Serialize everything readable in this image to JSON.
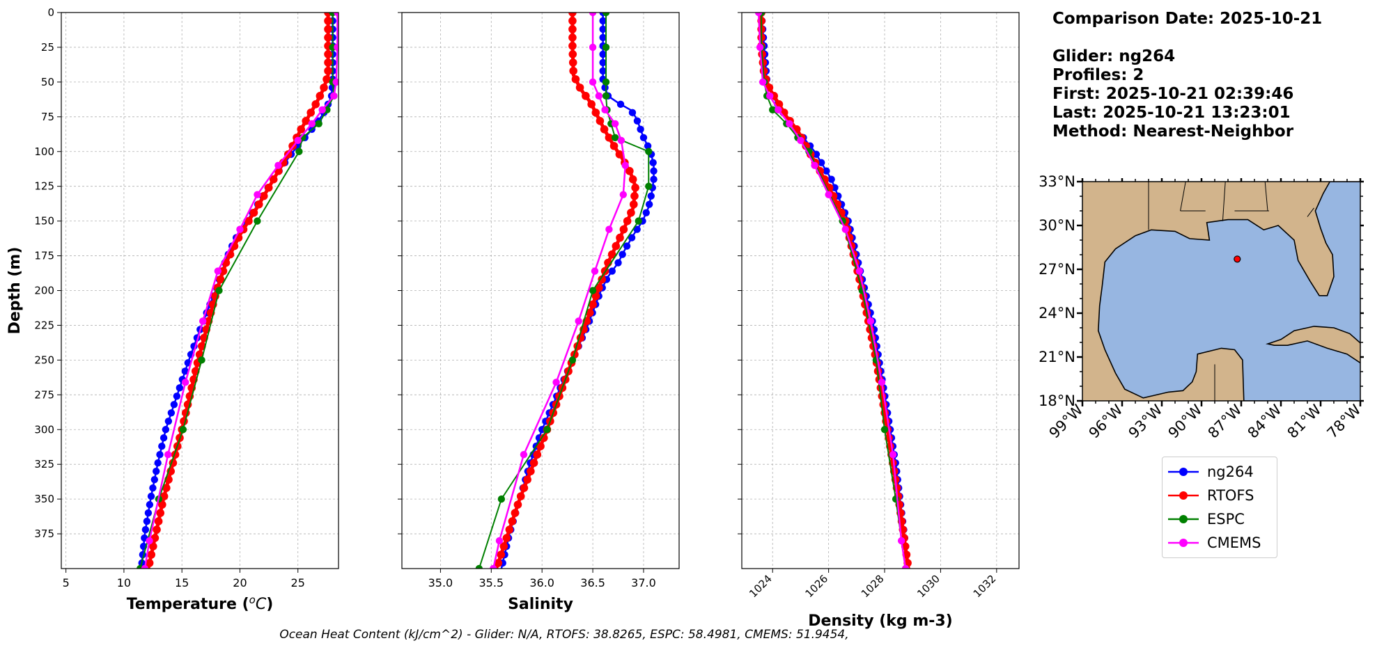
{
  "info": {
    "comparison_date": "Comparison Date: 2025-10-21",
    "glider": "Glider: ng264",
    "profiles": "Profiles: 2",
    "first": "First: 2025-10-21 02:39:46",
    "last": "Last: 2025-10-21 13:23:01",
    "method": "Method: Nearest-Neighbor"
  },
  "footer": "Ocean Heat Content (kJ/cm^2) - Glider: N/A,  RTOFS: 38.8265,  ESPC: 58.4981,  CMEMS: 51.9454,",
  "colors": {
    "ng264": "#0000ff",
    "RTOFS": "#ff0000",
    "ESPC": "#008000",
    "CMEMS": "#ff00ff",
    "land": "#d2b48c",
    "ocean": "#97b6e1"
  },
  "legend": [
    {
      "label": "ng264",
      "color": "#0000ff"
    },
    {
      "label": "RTOFS",
      "color": "#ff0000"
    },
    {
      "label": "ESPC",
      "color": "#008000"
    },
    {
      "label": "CMEMS",
      "color": "#ff00ff"
    }
  ],
  "chart_data": [
    {
      "type": "line",
      "xlabel": "Temperature (°C)",
      "ylabel": "Depth (m)",
      "xlim": [
        4.6,
        28.5
      ],
      "ylim": [
        400,
        0
      ],
      "xticks": [
        5,
        10,
        15,
        20,
        25
      ],
      "yticks": [
        0,
        25,
        50,
        75,
        100,
        125,
        150,
        175,
        200,
        225,
        250,
        275,
        300,
        325,
        350,
        375
      ],
      "grid": true,
      "series": [
        {
          "name": "ng264",
          "depth": [
            0,
            25,
            50,
            60,
            70,
            80,
            90,
            100,
            110,
            120,
            130,
            140,
            150,
            160,
            170,
            180,
            190,
            200,
            225,
            250,
            275,
            300,
            325,
            350,
            375,
            400
          ],
          "values": [
            28.0,
            28.0,
            28.0,
            27.9,
            27.4,
            26.6,
            25.6,
            24.6,
            23.7,
            22.9,
            22.1,
            21.4,
            20.6,
            19.8,
            19.2,
            18.7,
            18.3,
            17.9,
            16.7,
            15.6,
            14.6,
            13.6,
            12.9,
            12.3,
            11.8,
            11.5
          ]
        },
        {
          "name": "RTOFS",
          "depth": [
            0,
            25,
            45,
            55,
            65,
            75,
            85,
            100,
            120,
            140,
            160,
            180,
            200,
            250,
            300,
            350,
            400
          ],
          "values": [
            27.6,
            27.6,
            27.6,
            27.2,
            26.6,
            25.9,
            25.2,
            24.3,
            22.9,
            21.5,
            20.0,
            18.8,
            18.0,
            16.4,
            15.0,
            13.4,
            12.1
          ]
        },
        {
          "name": "ESPC",
          "depth": [
            0,
            25,
            50,
            60,
            70,
            80,
            90,
            100,
            150,
            200,
            250,
            300,
            350,
            400
          ],
          "values": [
            28.0,
            28.0,
            28.0,
            28.1,
            27.5,
            26.8,
            25.4,
            25.1,
            21.5,
            18.2,
            16.7,
            15.1,
            13.0,
            11.4
          ]
        },
        {
          "name": "CMEMS",
          "depth": [
            0,
            25,
            50,
            60,
            70,
            80,
            92,
            110,
            131,
            156,
            186,
            222,
            266,
            318,
            380,
            400
          ],
          "values": [
            28.4,
            28.4,
            28.3,
            28.1,
            27.1,
            26.2,
            25.0,
            23.3,
            21.5,
            20.0,
            18.1,
            16.8,
            15.3,
            13.8,
            12.2,
            11.8
          ]
        }
      ]
    },
    {
      "type": "line",
      "xlabel": "Salinity",
      "xlim": [
        34.62,
        37.35
      ],
      "ylim": [
        400,
        0
      ],
      "xticks": [
        35.0,
        35.5,
        36.0,
        36.5,
        37.0
      ],
      "grid": true,
      "series": [
        {
          "name": "ng264",
          "depth": [
            0,
            25,
            50,
            60,
            65,
            70,
            75,
            80,
            90,
            100,
            110,
            120,
            130,
            140,
            150,
            160,
            170,
            180,
            190,
            200,
            225,
            250,
            275,
            300,
            325,
            350,
            375,
            400
          ],
          "values": [
            36.6,
            36.6,
            36.6,
            36.65,
            36.75,
            36.87,
            36.92,
            36.95,
            37.0,
            37.07,
            37.1,
            37.1,
            37.08,
            37.05,
            36.99,
            36.9,
            36.82,
            36.75,
            36.65,
            36.58,
            36.45,
            36.3,
            36.15,
            36.0,
            35.88,
            35.78,
            35.68,
            35.6
          ]
        },
        {
          "name": "RTOFS",
          "depth": [
            0,
            25,
            45,
            55,
            65,
            75,
            85,
            95,
            105,
            115,
            125,
            140,
            160,
            180,
            200,
            250,
            300,
            350,
            400
          ],
          "values": [
            36.3,
            36.3,
            36.31,
            36.38,
            36.48,
            36.55,
            36.62,
            36.7,
            36.79,
            36.87,
            36.92,
            36.9,
            36.78,
            36.65,
            36.55,
            36.3,
            36.05,
            35.78,
            35.55
          ]
        },
        {
          "name": "ESPC",
          "depth": [
            0,
            25,
            50,
            60,
            70,
            80,
            90,
            100,
            125,
            150,
            200,
            250,
            300,
            350,
            400
          ],
          "values": [
            36.63,
            36.63,
            36.63,
            36.63,
            36.64,
            36.68,
            36.72,
            37.05,
            37.05,
            36.95,
            36.5,
            36.3,
            36.05,
            35.6,
            35.38
          ]
        },
        {
          "name": "CMEMS",
          "depth": [
            0,
            25,
            50,
            60,
            70,
            80,
            92,
            110,
            131,
            156,
            186,
            222,
            266,
            318,
            380,
            400
          ],
          "values": [
            36.5,
            36.5,
            36.5,
            36.56,
            36.62,
            36.72,
            36.78,
            36.82,
            36.8,
            36.66,
            36.52,
            36.36,
            36.14,
            35.82,
            35.58,
            35.52
          ]
        }
      ]
    },
    {
      "type": "line",
      "xlabel": "Density (kg m-3)",
      "xlim": [
        1022.9,
        1032.8
      ],
      "ylim": [
        400,
        0
      ],
      "xticks": [
        1024,
        1026,
        1028,
        1030,
        1032
      ],
      "grid": true,
      "series": [
        {
          "name": "ng264",
          "depth": [
            0,
            25,
            50,
            60,
            70,
            80,
            90,
            100,
            110,
            120,
            130,
            150,
            175,
            200,
            225,
            250,
            275,
            300,
            325,
            350,
            375,
            400
          ],
          "values": [
            1023.6,
            1023.7,
            1023.8,
            1024.0,
            1024.3,
            1024.7,
            1025.1,
            1025.5,
            1025.8,
            1026.1,
            1026.3,
            1026.7,
            1027.0,
            1027.3,
            1027.6,
            1027.8,
            1028.0,
            1028.2,
            1028.4,
            1028.55,
            1028.7,
            1028.85
          ]
        },
        {
          "name": "RTOFS",
          "depth": [
            0,
            25,
            45,
            55,
            65,
            75,
            85,
            100,
            125,
            150,
            175,
            200,
            250,
            300,
            350,
            400
          ],
          "values": [
            1023.6,
            1023.6,
            1023.7,
            1023.9,
            1024.2,
            1024.5,
            1024.9,
            1025.3,
            1026.0,
            1026.6,
            1026.9,
            1027.2,
            1027.7,
            1028.1,
            1028.5,
            1028.85
          ]
        },
        {
          "name": "ESPC",
          "depth": [
            0,
            25,
            50,
            60,
            70,
            80,
            90,
            100,
            150,
            200,
            250,
            300,
            350,
            400
          ],
          "values": [
            1023.6,
            1023.6,
            1023.7,
            1023.8,
            1024.0,
            1024.5,
            1024.9,
            1025.3,
            1026.5,
            1027.2,
            1027.7,
            1028.0,
            1028.4,
            1028.75
          ]
        },
        {
          "name": "CMEMS",
          "depth": [
            0,
            25,
            50,
            60,
            70,
            80,
            92,
            110,
            131,
            156,
            186,
            222,
            266,
            318,
            380,
            400
          ],
          "values": [
            1023.5,
            1023.55,
            1023.65,
            1023.9,
            1024.2,
            1024.6,
            1025.0,
            1025.5,
            1026.0,
            1026.6,
            1027.1,
            1027.5,
            1027.9,
            1028.3,
            1028.6,
            1028.75
          ]
        }
      ]
    }
  ],
  "map": {
    "lon_range": [
      -99,
      -78
    ],
    "lat_range": [
      18,
      33
    ],
    "lon_ticks": [
      "99°W",
      "96°W",
      "93°W",
      "90°W",
      "87°W",
      "84°W",
      "81°W",
      "78°W"
    ],
    "lat_ticks": [
      "33°N",
      "30°N",
      "27°N",
      "24°N",
      "21°N",
      "18°N"
    ],
    "glider_position": {
      "lon": -87.3,
      "lat": 27.7
    }
  }
}
